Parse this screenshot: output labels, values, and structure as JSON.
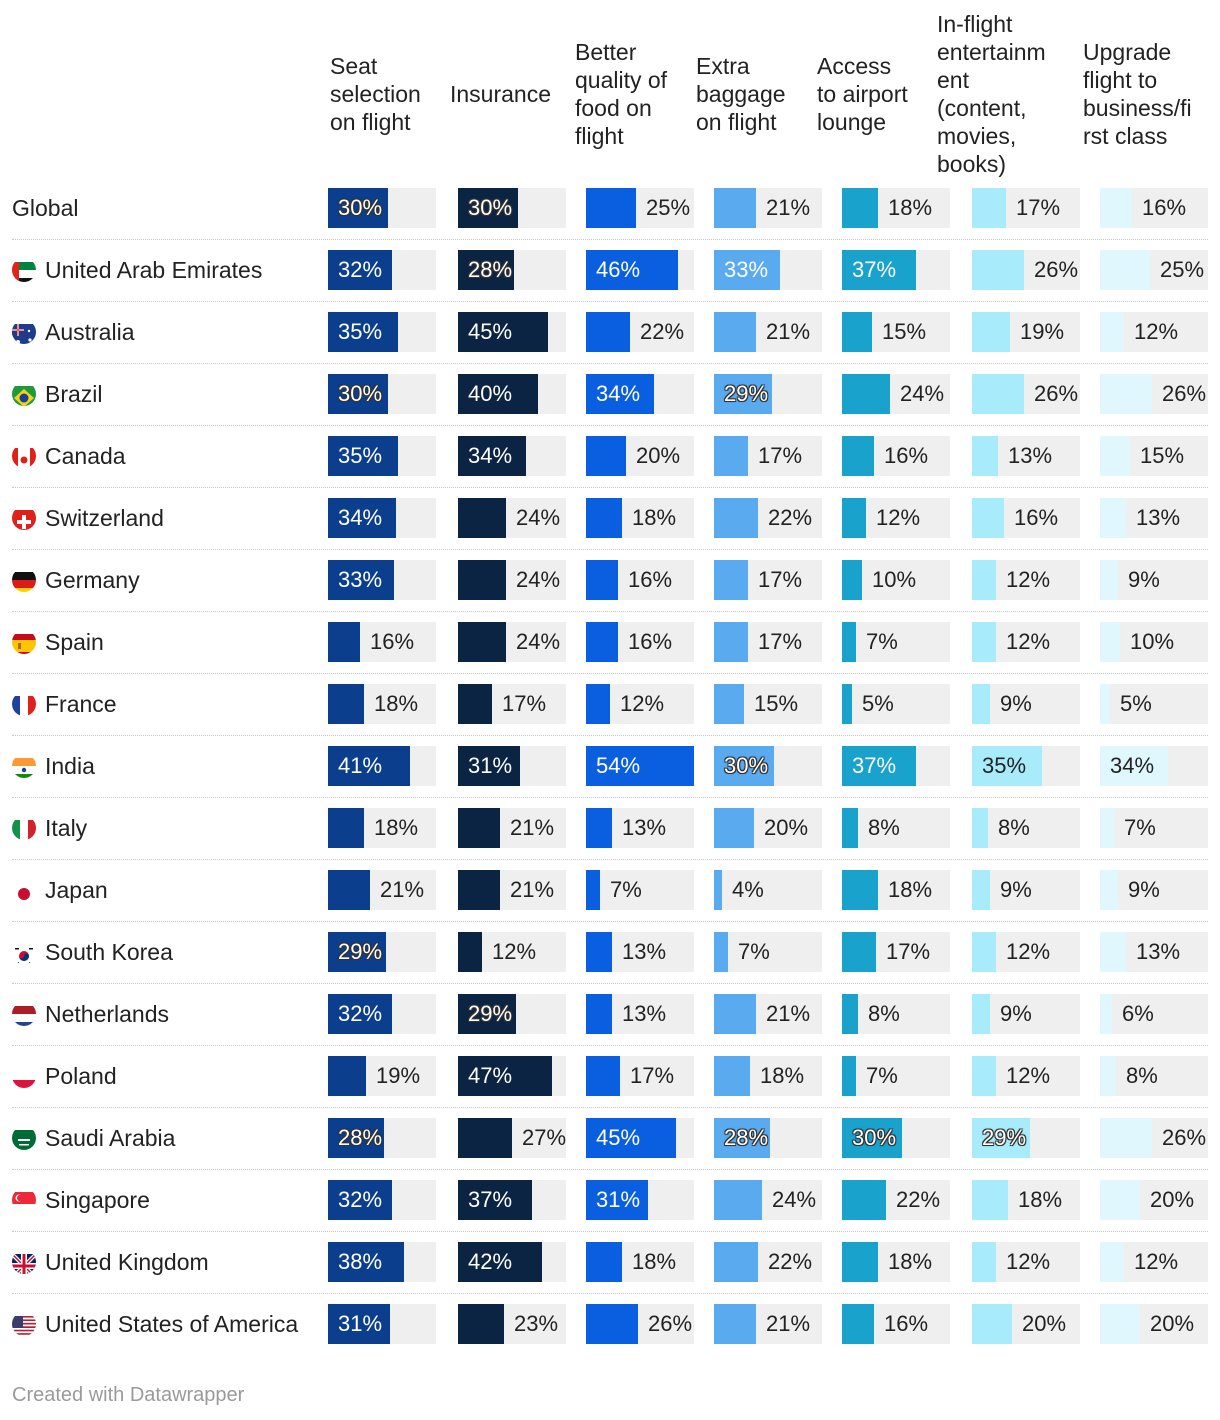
{
  "chart_data": {
    "type": "bar",
    "title": "",
    "columns": [
      {
        "name": "Seat selection on flight",
        "header_lines": "Seat\nselection\non flight",
        "color": "#0b3f8e"
      },
      {
        "name": "Insurance",
        "header_lines": "Insurance",
        "color": "#0c2444"
      },
      {
        "name": "Better quality of food on flight",
        "header_lines": "Better\nquality of\nfood on\nflight",
        "color": "#0a5fe0"
      },
      {
        "name": "Extra baggage on flight",
        "header_lines": "Extra\nbaggage\non flight",
        "color": "#5aaaf0"
      },
      {
        "name": "Access to airport lounge",
        "header_lines": "Access\nto airport\nlounge",
        "color": "#18a2cc"
      },
      {
        "name": "In-flight entertainment (content, movies, books)",
        "header_lines": "In-flight\nentertainm\nent\n(content,\nmovies,\nbooks)",
        "color": "#a8ecfb"
      },
      {
        "name": "Upgrade flight to business/first class",
        "header_lines": "Upgrade\nflight to\nbusiness/fi\nrst class",
        "color": "#e0f7fd"
      }
    ],
    "x_range": [
      0,
      54
    ],
    "unit": "%",
    "rows": [
      {
        "country": "Global",
        "flag": "none",
        "values": [
          30,
          30,
          25,
          21,
          18,
          17,
          16
        ]
      },
      {
        "country": "United Arab Emirates",
        "flag": "uae-flag",
        "values": [
          32,
          28,
          46,
          33,
          37,
          26,
          25
        ]
      },
      {
        "country": "Australia",
        "flag": "australia-flag",
        "values": [
          35,
          45,
          22,
          21,
          15,
          19,
          12
        ]
      },
      {
        "country": "Brazil",
        "flag": "brazil-flag",
        "values": [
          30,
          40,
          34,
          29,
          24,
          26,
          26
        ]
      },
      {
        "country": "Canada",
        "flag": "canada-flag",
        "values": [
          35,
          34,
          20,
          17,
          16,
          13,
          15
        ]
      },
      {
        "country": "Switzerland",
        "flag": "switzerland-flag",
        "values": [
          34,
          24,
          18,
          22,
          12,
          16,
          13
        ]
      },
      {
        "country": "Germany",
        "flag": "germany-flag",
        "values": [
          33,
          24,
          16,
          17,
          10,
          12,
          9
        ]
      },
      {
        "country": "Spain",
        "flag": "spain-flag",
        "values": [
          16,
          24,
          16,
          17,
          7,
          12,
          10
        ]
      },
      {
        "country": "France",
        "flag": "france-flag",
        "values": [
          18,
          17,
          12,
          15,
          5,
          9,
          5
        ]
      },
      {
        "country": "India",
        "flag": "india-flag",
        "values": [
          41,
          31,
          54,
          30,
          37,
          35,
          34
        ]
      },
      {
        "country": "Italy",
        "flag": "italy-flag",
        "values": [
          18,
          21,
          13,
          20,
          8,
          8,
          7
        ]
      },
      {
        "country": "Japan",
        "flag": "japan-flag",
        "values": [
          21,
          21,
          7,
          4,
          18,
          9,
          9
        ]
      },
      {
        "country": "South Korea",
        "flag": "south-korea-flag",
        "values": [
          29,
          12,
          13,
          7,
          17,
          12,
          13
        ]
      },
      {
        "country": "Netherlands",
        "flag": "netherlands-flag",
        "values": [
          32,
          29,
          13,
          21,
          8,
          9,
          6
        ]
      },
      {
        "country": "Poland",
        "flag": "poland-flag",
        "values": [
          19,
          47,
          17,
          18,
          7,
          12,
          8
        ]
      },
      {
        "country": "Saudi Arabia",
        "flag": "saudi-arabia-flag",
        "values": [
          28,
          27,
          45,
          28,
          30,
          29,
          26
        ]
      },
      {
        "country": "Singapore",
        "flag": "singapore-flag",
        "values": [
          32,
          37,
          31,
          24,
          22,
          18,
          20
        ]
      },
      {
        "country": "United Kingdom",
        "flag": "uk-flag",
        "values": [
          38,
          42,
          18,
          22,
          18,
          12,
          12
        ]
      },
      {
        "country": "United States of America",
        "flag": "usa-flag",
        "values": [
          31,
          23,
          26,
          21,
          16,
          20,
          20
        ]
      }
    ]
  },
  "footer": "Created with Datawrapper"
}
